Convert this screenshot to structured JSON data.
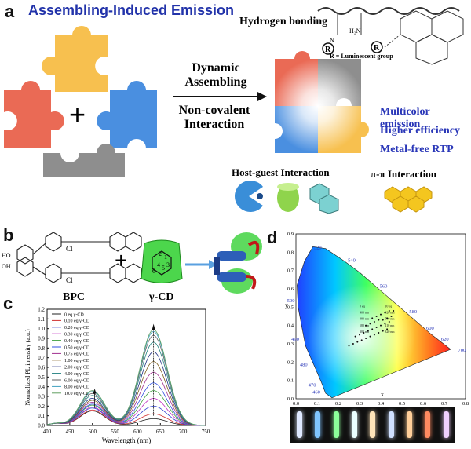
{
  "panel_a": {
    "letter": "a",
    "title": "Assembling-Induced Emission",
    "plus": "+",
    "arrow_top": [
      "Dynamic",
      "Assembling"
    ],
    "arrow_bottom": [
      "Non-covalent",
      "Interaction"
    ],
    "hydrogen_bonding": "Hydrogen bonding",
    "r_note": "R = Luminescent group",
    "r_symbol": "R",
    "properties": [
      "Multicolor emission",
      "Higher efficiency",
      "Metal-free RTP"
    ],
    "host_guest": "Host-guest Interaction",
    "pi_pi": "π-π Interaction",
    "colors": {
      "red": "#ea6a55",
      "yellow": "#f7c04f",
      "blue": "#4a8fe0",
      "gray": "#8e8e8e"
    }
  },
  "panel_b": {
    "letter": "b",
    "plus": "+",
    "bpc_label": "BPC",
    "gcd_label": "γ-CD",
    "cl": "Cl",
    "oh": "OH",
    "ho": "HO",
    "ring_numbers": [
      "1",
      "2",
      "3",
      "4",
      "5",
      "6"
    ]
  },
  "panel_c": {
    "letter": "c",
    "chart_data": {
      "type": "line",
      "xlabel": "Wavelength (nm)",
      "ylabel": "Normalized PL intensity (a.u.)",
      "xlim": [
        400,
        750
      ],
      "ylim": [
        0,
        1.2
      ],
      "xticks": [
        400,
        450,
        500,
        550,
        600,
        650,
        700,
        750
      ],
      "yticks": [
        0.0,
        0.1,
        0.2,
        0.3,
        0.4,
        0.5,
        0.6,
        0.7,
        0.8,
        0.9,
        1.0,
        1.1,
        1.2
      ],
      "series": [
        {
          "name": "0     eq γ-CD",
          "color": "#222222",
          "peak1": 0.15,
          "peak2": 0.07
        },
        {
          "name": "0.10 eq γ-CD",
          "color": "#d03030",
          "peak1": 0.16,
          "peak2": 0.12
        },
        {
          "name": "0.20 eq γ-CD",
          "color": "#3040d0",
          "peak1": 0.18,
          "peak2": 0.2
        },
        {
          "name": "0.30 eq γ-CD",
          "color": "#c030c0",
          "peak1": 0.19,
          "peak2": 0.28
        },
        {
          "name": "0.40 eq γ-CD",
          "color": "#40a040",
          "peak1": 0.21,
          "peak2": 0.36
        },
        {
          "name": "0.50 eq γ-CD",
          "color": "#3050e0",
          "peak1": 0.22,
          "peak2": 0.44
        },
        {
          "name": "0.75 eq γ-CD",
          "color": "#a03090",
          "peak1": 0.24,
          "peak2": 0.55
        },
        {
          "name": "1.00 eq γ-CD",
          "color": "#806020",
          "peak1": 0.26,
          "peak2": 0.66
        },
        {
          "name": "2.00 eq γ-CD",
          "color": "#203080",
          "peak1": 0.28,
          "peak2": 0.76
        },
        {
          "name": "4.00 eq γ-CD",
          "color": "#208080",
          "peak1": 0.31,
          "peak2": 0.86
        },
        {
          "name": "6.00 eq γ-CD",
          "color": "#606060",
          "peak1": 0.33,
          "peak2": 0.93
        },
        {
          "name": "8.00 eq γ-CD",
          "color": "#40a0c0",
          "peak1": 0.35,
          "peak2": 0.97
        },
        {
          "name": "10.0 eq γ-CD",
          "color": "#60a060",
          "peak1": 0.36,
          "peak2": 0.99
        }
      ]
    }
  },
  "panel_d": {
    "letter": "d",
    "chart_data": {
      "type": "scatter",
      "xlabel": "x",
      "ylabel": "y",
      "xlim": [
        0.0,
        0.8
      ],
      "ylim": [
        0.0,
        0.9
      ],
      "xticks": [
        "0.0",
        "0.1",
        "0.2",
        "0.3",
        "0.4",
        "0.5",
        "0.6",
        "0.7",
        "0.8"
      ],
      "yticks": [
        "0.0",
        "0.1",
        "0.2",
        "0.3",
        "0.4",
        "0.5",
        "0.6",
        "0.7",
        "0.8",
        "0.9"
      ],
      "wavelength_labels": [
        "460",
        "470",
        "480",
        "490",
        "500",
        "520",
        "540",
        "560",
        "580",
        "600",
        "620",
        "700"
      ],
      "inner_labels": [
        "0 eq",
        "10 eq",
        "400 nm",
        "420 nm",
        "480 nm",
        "500 nm",
        "580 nm",
        "110 nm",
        "300 nm",
        "320 nm"
      ],
      "points": [
        [
          0.25,
          0.29
        ],
        [
          0.27,
          0.3
        ],
        [
          0.29,
          0.31
        ],
        [
          0.31,
          0.32
        ],
        [
          0.33,
          0.33
        ],
        [
          0.35,
          0.34
        ],
        [
          0.37,
          0.35
        ],
        [
          0.39,
          0.36
        ],
        [
          0.41,
          0.37
        ],
        [
          0.43,
          0.38
        ],
        [
          0.28,
          0.34
        ],
        [
          0.3,
          0.35
        ],
        [
          0.32,
          0.36
        ],
        [
          0.34,
          0.37
        ],
        [
          0.36,
          0.38
        ],
        [
          0.38,
          0.39
        ],
        [
          0.4,
          0.4
        ],
        [
          0.42,
          0.41
        ],
        [
          0.44,
          0.42
        ],
        [
          0.33,
          0.4
        ],
        [
          0.35,
          0.41
        ],
        [
          0.37,
          0.42
        ],
        [
          0.39,
          0.43
        ],
        [
          0.41,
          0.43
        ],
        [
          0.43,
          0.44
        ],
        [
          0.45,
          0.45
        ],
        [
          0.36,
          0.44
        ],
        [
          0.38,
          0.45
        ],
        [
          0.4,
          0.46
        ],
        [
          0.42,
          0.47
        ],
        [
          0.44,
          0.48
        ],
        [
          0.46,
          0.48
        ]
      ]
    },
    "sample_colors": [
      "#dfe8ff",
      "#7fc4ff",
      "#8cff9a",
      "#eaffff",
      "#ffe4b8",
      "#cfe0ff",
      "#ffcf9a",
      "#ff8a60",
      "#f0d0ff"
    ]
  }
}
